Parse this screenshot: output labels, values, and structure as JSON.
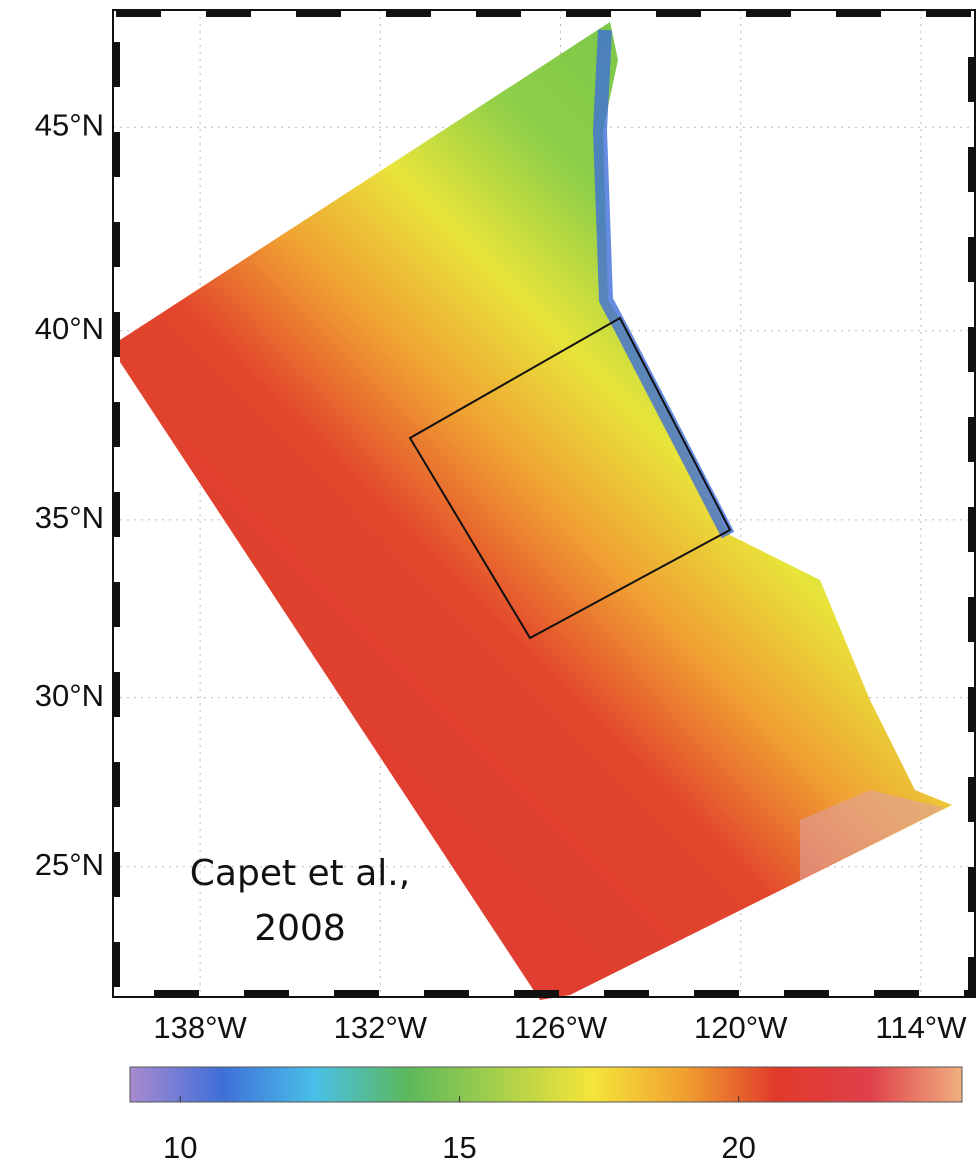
{
  "map": {
    "projection": "mercator",
    "xlim": [
      -140.9,
      -112.2
    ],
    "ylim": [
      21,
      47.7
    ],
    "xticks": [
      {
        "value": -138,
        "label": "138°W"
      },
      {
        "value": -132,
        "label": "132°W"
      },
      {
        "value": -126,
        "label": "126°W"
      },
      {
        "value": -120,
        "label": "120°W"
      },
      {
        "value": -114,
        "label": "114°W"
      }
    ],
    "yticks": [
      {
        "value": 45,
        "label": "45°N"
      },
      {
        "value": 40,
        "label": "40°N"
      },
      {
        "value": 35,
        "label": "35°N"
      },
      {
        "value": 30,
        "label": "30°N"
      },
      {
        "value": 25,
        "label": "25°N"
      }
    ],
    "grid": true,
    "annotation": [
      "Capet et al.,",
      "2008"
    ]
  },
  "colorbar": {
    "clim": [
      9.1,
      24
    ],
    "ticks": [
      10,
      15,
      20
    ],
    "colors": [
      "#a98ad0",
      "#3f6fd8",
      "#49c0e8",
      "#5cb85c",
      "#a8d04a",
      "#f5e43a",
      "#f0a030",
      "#e03a2a",
      "#e0404a",
      "#f0b080"
    ]
  }
}
